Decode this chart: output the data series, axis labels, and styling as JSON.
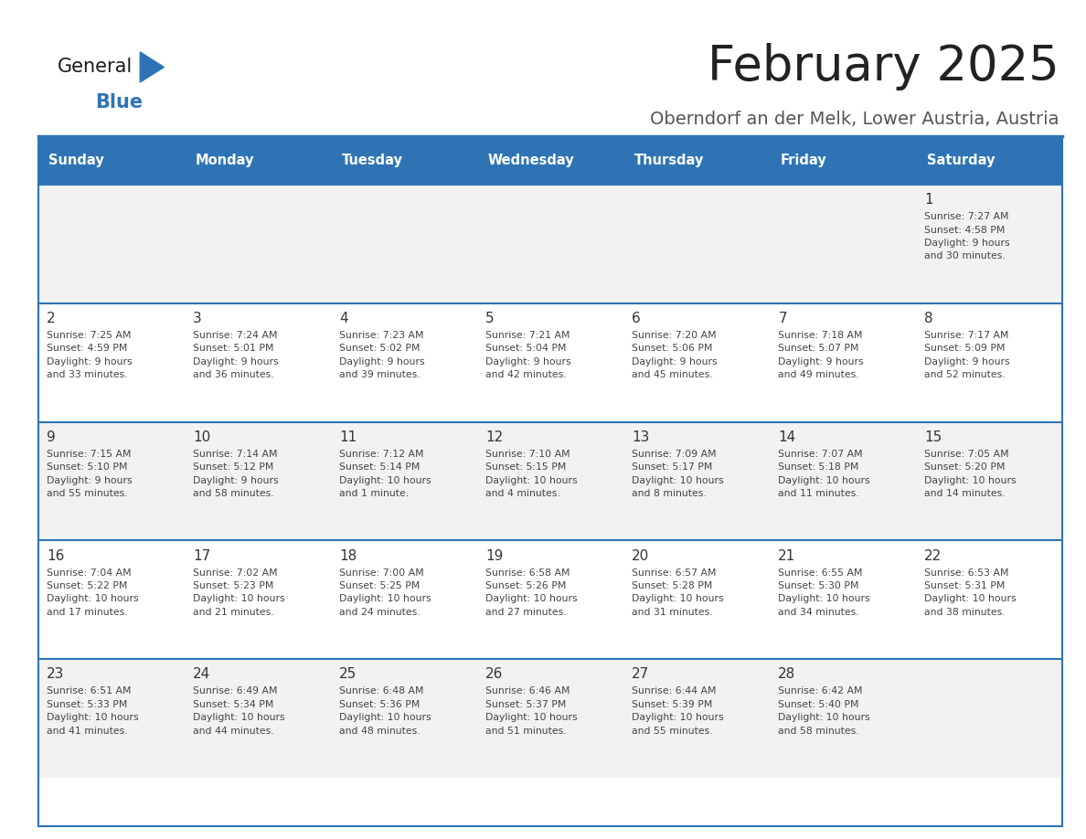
{
  "title": "February 2025",
  "subtitle": "Oberndorf an der Melk, Lower Austria, Austria",
  "days_of_week": [
    "Sunday",
    "Monday",
    "Tuesday",
    "Wednesday",
    "Thursday",
    "Friday",
    "Saturday"
  ],
  "header_bg": "#2E74B5",
  "header_text": "#FFFFFF",
  "row_bg_odd": "#F2F2F2",
  "row_bg_even": "#FFFFFF",
  "cell_border": "#2E74B5",
  "day_num_color": "#333333",
  "info_text_color": "#444444",
  "title_color": "#222222",
  "subtitle_color": "#555555",
  "logo_general_color": "#1a1a1a",
  "logo_blue_color": "#2E74B5",
  "weeks": [
    [
      {
        "day": null,
        "info": null
      },
      {
        "day": null,
        "info": null
      },
      {
        "day": null,
        "info": null
      },
      {
        "day": null,
        "info": null
      },
      {
        "day": null,
        "info": null
      },
      {
        "day": null,
        "info": null
      },
      {
        "day": 1,
        "info": "Sunrise: 7:27 AM\nSunset: 4:58 PM\nDaylight: 9 hours\nand 30 minutes."
      }
    ],
    [
      {
        "day": 2,
        "info": "Sunrise: 7:25 AM\nSunset: 4:59 PM\nDaylight: 9 hours\nand 33 minutes."
      },
      {
        "day": 3,
        "info": "Sunrise: 7:24 AM\nSunset: 5:01 PM\nDaylight: 9 hours\nand 36 minutes."
      },
      {
        "day": 4,
        "info": "Sunrise: 7:23 AM\nSunset: 5:02 PM\nDaylight: 9 hours\nand 39 minutes."
      },
      {
        "day": 5,
        "info": "Sunrise: 7:21 AM\nSunset: 5:04 PM\nDaylight: 9 hours\nand 42 minutes."
      },
      {
        "day": 6,
        "info": "Sunrise: 7:20 AM\nSunset: 5:06 PM\nDaylight: 9 hours\nand 45 minutes."
      },
      {
        "day": 7,
        "info": "Sunrise: 7:18 AM\nSunset: 5:07 PM\nDaylight: 9 hours\nand 49 minutes."
      },
      {
        "day": 8,
        "info": "Sunrise: 7:17 AM\nSunset: 5:09 PM\nDaylight: 9 hours\nand 52 minutes."
      }
    ],
    [
      {
        "day": 9,
        "info": "Sunrise: 7:15 AM\nSunset: 5:10 PM\nDaylight: 9 hours\nand 55 minutes."
      },
      {
        "day": 10,
        "info": "Sunrise: 7:14 AM\nSunset: 5:12 PM\nDaylight: 9 hours\nand 58 minutes."
      },
      {
        "day": 11,
        "info": "Sunrise: 7:12 AM\nSunset: 5:14 PM\nDaylight: 10 hours\nand 1 minute."
      },
      {
        "day": 12,
        "info": "Sunrise: 7:10 AM\nSunset: 5:15 PM\nDaylight: 10 hours\nand 4 minutes."
      },
      {
        "day": 13,
        "info": "Sunrise: 7:09 AM\nSunset: 5:17 PM\nDaylight: 10 hours\nand 8 minutes."
      },
      {
        "day": 14,
        "info": "Sunrise: 7:07 AM\nSunset: 5:18 PM\nDaylight: 10 hours\nand 11 minutes."
      },
      {
        "day": 15,
        "info": "Sunrise: 7:05 AM\nSunset: 5:20 PM\nDaylight: 10 hours\nand 14 minutes."
      }
    ],
    [
      {
        "day": 16,
        "info": "Sunrise: 7:04 AM\nSunset: 5:22 PM\nDaylight: 10 hours\nand 17 minutes."
      },
      {
        "day": 17,
        "info": "Sunrise: 7:02 AM\nSunset: 5:23 PM\nDaylight: 10 hours\nand 21 minutes."
      },
      {
        "day": 18,
        "info": "Sunrise: 7:00 AM\nSunset: 5:25 PM\nDaylight: 10 hours\nand 24 minutes."
      },
      {
        "day": 19,
        "info": "Sunrise: 6:58 AM\nSunset: 5:26 PM\nDaylight: 10 hours\nand 27 minutes."
      },
      {
        "day": 20,
        "info": "Sunrise: 6:57 AM\nSunset: 5:28 PM\nDaylight: 10 hours\nand 31 minutes."
      },
      {
        "day": 21,
        "info": "Sunrise: 6:55 AM\nSunset: 5:30 PM\nDaylight: 10 hours\nand 34 minutes."
      },
      {
        "day": 22,
        "info": "Sunrise: 6:53 AM\nSunset: 5:31 PM\nDaylight: 10 hours\nand 38 minutes."
      }
    ],
    [
      {
        "day": 23,
        "info": "Sunrise: 6:51 AM\nSunset: 5:33 PM\nDaylight: 10 hours\nand 41 minutes."
      },
      {
        "day": 24,
        "info": "Sunrise: 6:49 AM\nSunset: 5:34 PM\nDaylight: 10 hours\nand 44 minutes."
      },
      {
        "day": 25,
        "info": "Sunrise: 6:48 AM\nSunset: 5:36 PM\nDaylight: 10 hours\nand 48 minutes."
      },
      {
        "day": 26,
        "info": "Sunrise: 6:46 AM\nSunset: 5:37 PM\nDaylight: 10 hours\nand 51 minutes."
      },
      {
        "day": 27,
        "info": "Sunrise: 6:44 AM\nSunset: 5:39 PM\nDaylight: 10 hours\nand 55 minutes."
      },
      {
        "day": 28,
        "info": "Sunrise: 6:42 AM\nSunset: 5:40 PM\nDaylight: 10 hours\nand 58 minutes."
      },
      {
        "day": null,
        "info": null
      }
    ]
  ]
}
